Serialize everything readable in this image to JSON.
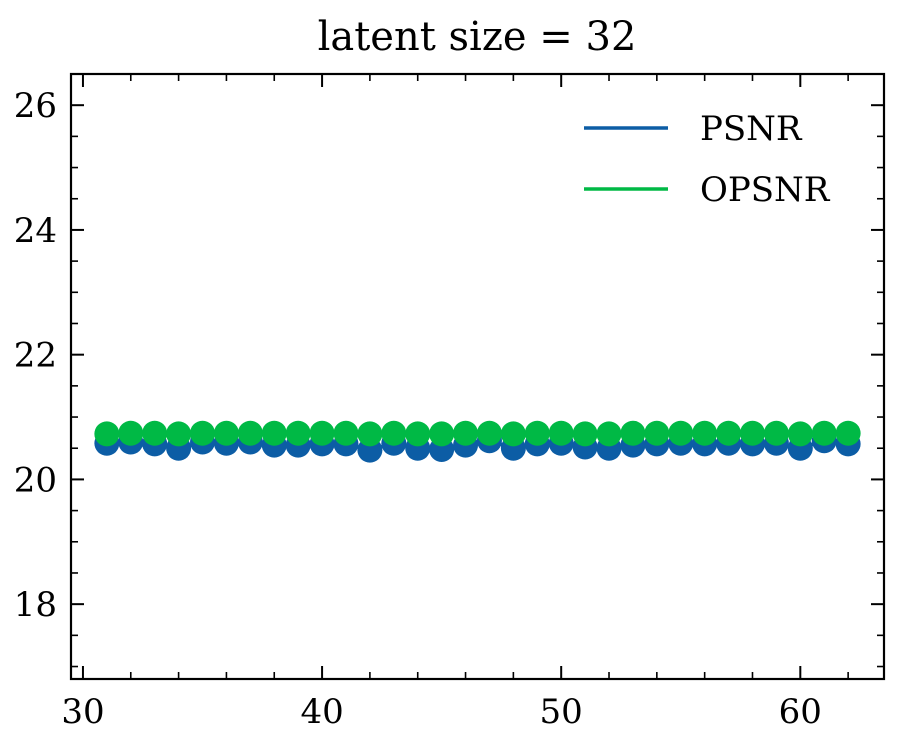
{
  "chart_data": {
    "type": "line",
    "title": "latent size = 32",
    "xlabel": "",
    "ylabel": "",
    "xlim": [
      29.5,
      63.5
    ],
    "ylim": [
      16.8,
      26.5
    ],
    "x_ticks": [
      30,
      40,
      50,
      60
    ],
    "y_ticks": [
      18,
      20,
      22,
      24,
      26
    ],
    "x_minor_step": 2,
    "y_minor_step": 0.5,
    "legend_position": "top-right",
    "x": [
      31,
      32,
      33,
      34,
      35,
      36,
      37,
      38,
      39,
      40,
      41,
      42,
      43,
      44,
      45,
      46,
      47,
      48,
      49,
      50,
      51,
      52,
      53,
      54,
      55,
      56,
      57,
      58,
      59,
      60,
      61,
      62
    ],
    "series": [
      {
        "name": "PSNR",
        "color": "#0C5DA5",
        "marker": "circle",
        "values": [
          20.58,
          20.6,
          20.57,
          20.5,
          20.6,
          20.58,
          20.6,
          20.55,
          20.55,
          20.57,
          20.57,
          20.47,
          20.58,
          20.5,
          20.48,
          20.55,
          20.62,
          20.5,
          20.57,
          20.58,
          20.52,
          20.5,
          20.55,
          20.57,
          20.58,
          20.57,
          20.58,
          20.57,
          20.58,
          20.5,
          20.62,
          20.57
        ]
      },
      {
        "name": "OPSNR",
        "color": "#00B945",
        "marker": "circle",
        "values": [
          20.73,
          20.74,
          20.74,
          20.73,
          20.74,
          20.74,
          20.74,
          20.74,
          20.74,
          20.74,
          20.74,
          20.73,
          20.74,
          20.73,
          20.73,
          20.74,
          20.74,
          20.73,
          20.74,
          20.74,
          20.73,
          20.73,
          20.74,
          20.74,
          20.74,
          20.74,
          20.74,
          20.74,
          20.74,
          20.73,
          20.74,
          20.74
        ]
      }
    ]
  }
}
